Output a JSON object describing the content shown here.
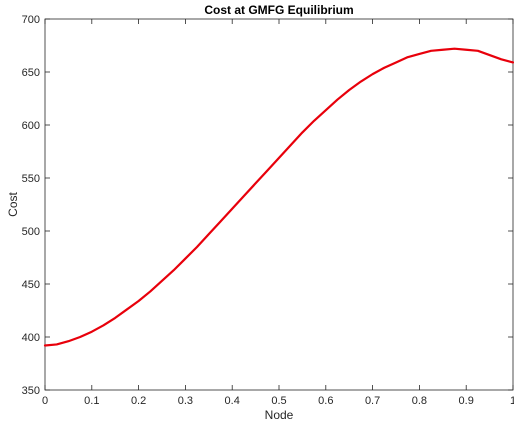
{
  "chart_data": {
    "type": "line",
    "title": "Cost at GMFG Equilibrium",
    "xlabel": "Node",
    "ylabel": "Cost",
    "xlim": [
      0,
      1
    ],
    "ylim": [
      350,
      700
    ],
    "xticks": [
      0,
      0.1,
      0.2,
      0.3,
      0.4,
      0.5,
      0.6,
      0.7,
      0.8,
      0.9,
      1
    ],
    "xtick_labels": [
      "0",
      "0.1",
      "0.2",
      "0.3",
      "0.4",
      "0.5",
      "0.6",
      "0.7",
      "0.8",
      "0.9",
      "1"
    ],
    "yticks": [
      350,
      400,
      450,
      500,
      550,
      600,
      650,
      700
    ],
    "ytick_labels": [
      "350",
      "400",
      "450",
      "500",
      "550",
      "600",
      "650",
      "700"
    ],
    "grid": false,
    "series": [
      {
        "color": "#e8000b",
        "x": [
          0,
          0.025,
          0.05,
          0.075,
          0.1,
          0.125,
          0.15,
          0.175,
          0.2,
          0.225,
          0.25,
          0.275,
          0.3,
          0.325,
          0.35,
          0.375,
          0.4,
          0.425,
          0.45,
          0.475,
          0.5,
          0.525,
          0.55,
          0.575,
          0.6,
          0.625,
          0.65,
          0.675,
          0.7,
          0.725,
          0.75,
          0.775,
          0.8,
          0.825,
          0.85,
          0.875,
          0.9,
          0.925,
          0.95,
          0.975,
          1
        ],
        "y": [
          392,
          393,
          396,
          400,
          405,
          411,
          418,
          426,
          434,
          443,
          453,
          463,
          474,
          485,
          497,
          509,
          521,
          533,
          545,
          557,
          569,
          581,
          593,
          604,
          614,
          624,
          633,
          641,
          648,
          654,
          659,
          664,
          667,
          670,
          671,
          672,
          671,
          670,
          666,
          662,
          659
        ]
      }
    ]
  }
}
